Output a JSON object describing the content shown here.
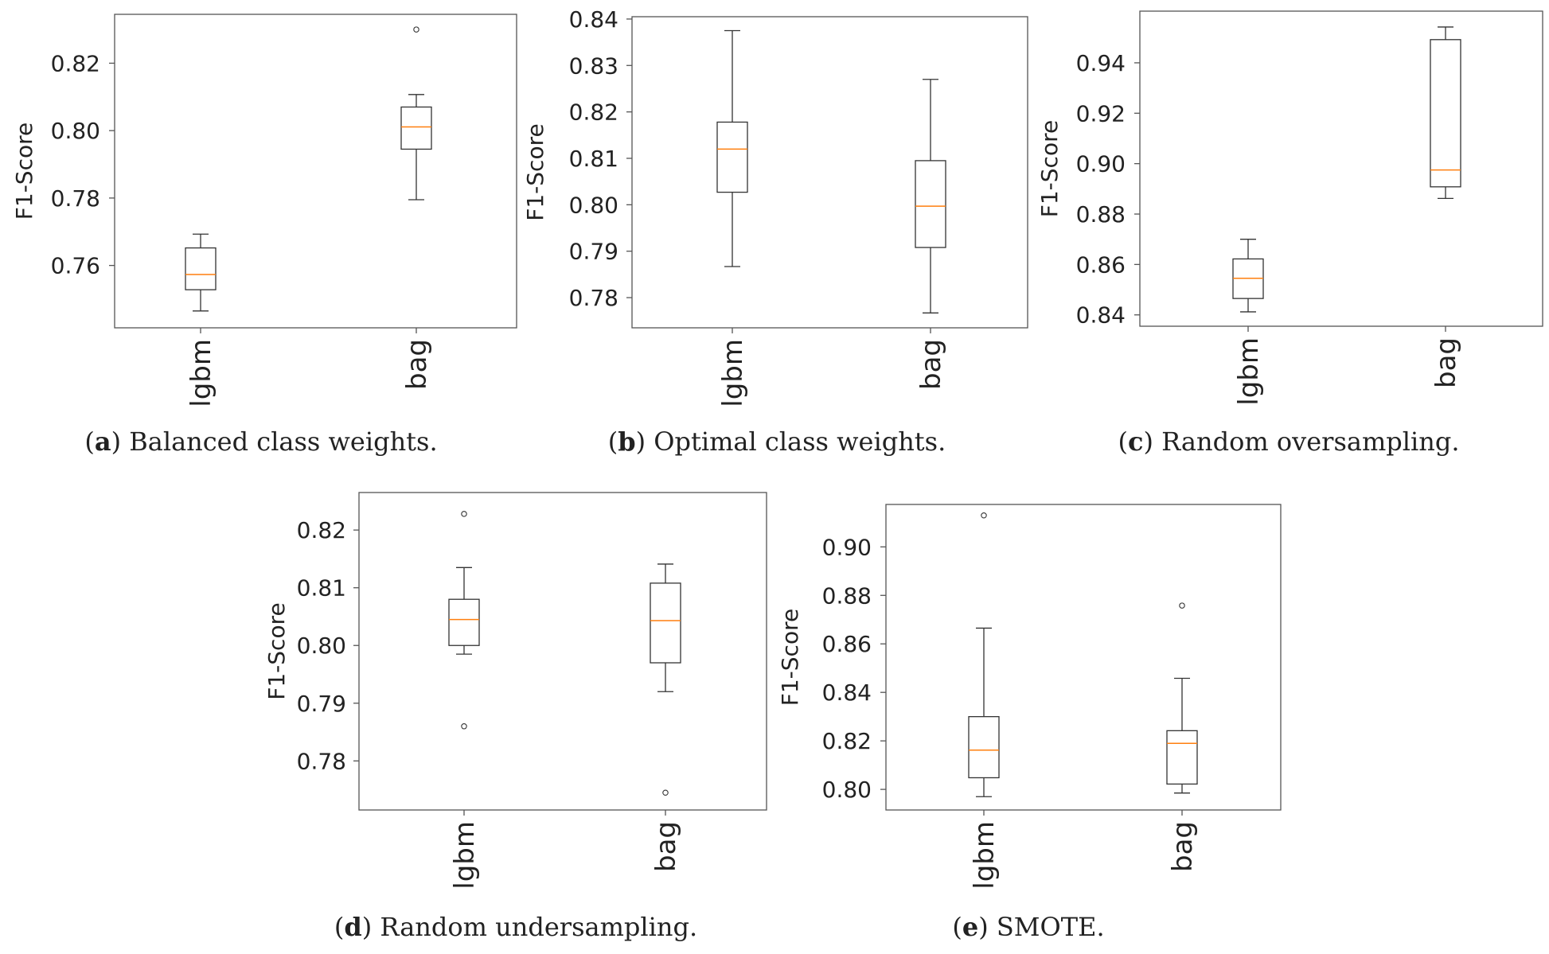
{
  "figure": {
    "subfigures": [
      {
        "letter": "a",
        "caption": ") Balanced class weights."
      },
      {
        "letter": "b",
        "caption": ") Optimal class weights."
      },
      {
        "letter": "c",
        "caption": ") Random oversampling."
      },
      {
        "letter": "d",
        "caption": ") Random undersampling."
      },
      {
        "letter": "e",
        "caption": ") SMOTE."
      }
    ]
  },
  "chart_data": [
    {
      "type": "boxplot",
      "title": "Balanced class weights.",
      "xlabel": "",
      "ylabel": "F1-Score",
      "categories": [
        "lgbm",
        "bag"
      ],
      "ylim": [
        0.7415,
        0.8345
      ],
      "yticks": [
        0.76,
        0.78,
        0.8,
        0.82
      ],
      "ytick_labels": [
        "0.76",
        "0.78",
        "0.80",
        "0.82"
      ],
      "boxes": [
        {
          "name": "lgbm",
          "whislo": 0.7465,
          "q1": 0.7528,
          "med": 0.7573,
          "q3": 0.7652,
          "whishi": 0.7693,
          "fliers": []
        },
        {
          "name": "bag",
          "whislo": 0.7795,
          "q1": 0.7945,
          "med": 0.8011,
          "q3": 0.807,
          "whishi": 0.8107,
          "fliers": [
            0.83
          ]
        }
      ]
    },
    {
      "type": "boxplot",
      "title": "Optimal class weights.",
      "xlabel": "",
      "ylabel": "F1-Score",
      "categories": [
        "lgbm",
        "bag"
      ],
      "ylim": [
        0.7735,
        0.8405
      ],
      "yticks": [
        0.78,
        0.79,
        0.8,
        0.81,
        0.82,
        0.83,
        0.84
      ],
      "ytick_labels": [
        "0.78",
        "0.79",
        "0.80",
        "0.81",
        "0.82",
        "0.83",
        "0.84"
      ],
      "boxes": [
        {
          "name": "lgbm",
          "whislo": 0.7867,
          "q1": 0.8027,
          "med": 0.812,
          "q3": 0.8178,
          "whishi": 0.8375,
          "fliers": []
        },
        {
          "name": "bag",
          "whislo": 0.7767,
          "q1": 0.7908,
          "med": 0.7997,
          "q3": 0.8095,
          "whishi": 0.827,
          "fliers": []
        }
      ]
    },
    {
      "type": "boxplot",
      "title": "Random oversampling.",
      "xlabel": "",
      "ylabel": "F1-Score",
      "categories": [
        "lgbm",
        "bag"
      ],
      "ylim": [
        0.8355,
        0.9605
      ],
      "yticks": [
        0.84,
        0.86,
        0.88,
        0.9,
        0.92,
        0.94
      ],
      "ytick_labels": [
        "0.84",
        "0.86",
        "0.88",
        "0.90",
        "0.92",
        "0.94"
      ],
      "boxes": [
        {
          "name": "lgbm",
          "whislo": 0.8412,
          "q1": 0.8465,
          "med": 0.8545,
          "q3": 0.8622,
          "whishi": 0.87,
          "fliers": []
        },
        {
          "name": "bag",
          "whislo": 0.8862,
          "q1": 0.8908,
          "med": 0.8975,
          "q3": 0.9492,
          "whishi": 0.9542,
          "fliers": []
        }
      ]
    },
    {
      "type": "boxplot",
      "title": "Random undersampling.",
      "xlabel": "",
      "ylabel": "F1-Score",
      "categories": [
        "lgbm",
        "bag"
      ],
      "ylim": [
        0.7715,
        0.8265
      ],
      "yticks": [
        0.78,
        0.79,
        0.8,
        0.81,
        0.82
      ],
      "ytick_labels": [
        "0.78",
        "0.79",
        "0.80",
        "0.81",
        "0.82"
      ],
      "boxes": [
        {
          "name": "lgbm",
          "whislo": 0.7985,
          "q1": 0.8,
          "med": 0.8045,
          "q3": 0.808,
          "whishi": 0.8135,
          "fliers": [
            0.8228,
            0.786
          ]
        },
        {
          "name": "bag",
          "whislo": 0.792,
          "q1": 0.797,
          "med": 0.8043,
          "q3": 0.8108,
          "whishi": 0.8141,
          "fliers": [
            0.7745
          ]
        }
      ]
    },
    {
      "type": "boxplot",
      "title": "SMOTE.",
      "xlabel": "",
      "ylabel": "F1-Score",
      "categories": [
        "lgbm",
        "bag"
      ],
      "ylim": [
        0.7915,
        0.9175
      ],
      "yticks": [
        0.8,
        0.82,
        0.84,
        0.86,
        0.88,
        0.9
      ],
      "ytick_labels": [
        "0.80",
        "0.82",
        "0.84",
        "0.86",
        "0.88",
        "0.90"
      ],
      "boxes": [
        {
          "name": "lgbm",
          "whislo": 0.797,
          "q1": 0.8048,
          "med": 0.8162,
          "q3": 0.83,
          "whishi": 0.8665,
          "fliers": [
            0.913
          ]
        },
        {
          "name": "bag",
          "whislo": 0.7985,
          "q1": 0.8022,
          "med": 0.819,
          "q3": 0.8242,
          "whishi": 0.8458,
          "fliers": [
            0.8758
          ]
        }
      ]
    }
  ],
  "colors": {
    "box": "#333333",
    "median": "#ff7f0e",
    "axes": "#555555",
    "text": "#222222"
  }
}
